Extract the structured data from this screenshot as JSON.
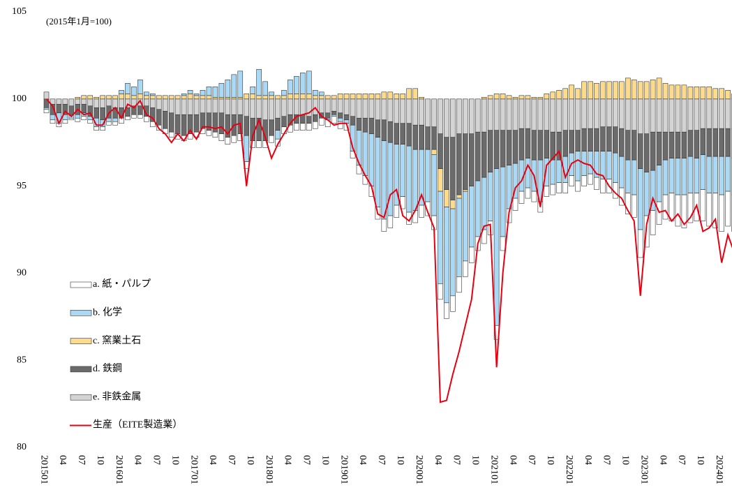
{
  "chart_data": {
    "type": "combo",
    "annotation": "(2015年1月=100)",
    "baseline": 100,
    "categories": [
      "201501",
      null,
      null,
      "04",
      null,
      null,
      "07",
      null,
      null,
      "10",
      null,
      null,
      "201601",
      null,
      null,
      "04",
      null,
      null,
      "07",
      null,
      null,
      "10",
      null,
      null,
      "201701",
      null,
      null,
      "04",
      null,
      null,
      "07",
      null,
      null,
      "10",
      null,
      null,
      "201801",
      null,
      null,
      "04",
      null,
      null,
      "07",
      null,
      null,
      "10",
      null,
      null,
      "201901",
      null,
      null,
      "04",
      null,
      null,
      "07",
      null,
      null,
      "10",
      null,
      null,
      "202001",
      null,
      null,
      "04",
      null,
      null,
      "07",
      null,
      null,
      "10",
      null,
      null,
      "202101",
      null,
      null,
      "04",
      null,
      null,
      "07",
      null,
      null,
      "10",
      null,
      null,
      "202201",
      null,
      null,
      "04",
      null,
      null,
      "07",
      null,
      null,
      "10",
      null,
      null,
      "202301",
      null,
      null,
      "04",
      null,
      null,
      "07",
      null,
      null,
      "10",
      null,
      null,
      "202401",
      null,
      null
    ],
    "ylim": [
      80,
      105
    ],
    "yticks": [
      80,
      85,
      90,
      95,
      100,
      105
    ],
    "series": [
      {
        "name": "a. 紙・パルプ",
        "type": "bar",
        "color": "#ffffff",
        "values": [
          -0.2,
          -0.2,
          -0.2,
          -0.2,
          -0.1,
          -0.2,
          -0.2,
          -0.2,
          -0.2,
          -0.2,
          -0.2,
          -0.2,
          -0.3,
          -0.2,
          -0.2,
          -0.2,
          -0.3,
          -0.3,
          -0.3,
          -0.3,
          -0.3,
          -0.3,
          -0.3,
          -0.3,
          -0.3,
          -0.3,
          -0.3,
          -0.3,
          -0.4,
          -0.4,
          -0.4,
          -0.4,
          -0.4,
          -0.4,
          -0.4,
          -0.4,
          -0.4,
          -0.4,
          -0.4,
          -0.4,
          -0.4,
          -0.4,
          -0.4,
          -0.4,
          -0.4,
          -0.4,
          -0.4,
          -0.4,
          -0.4,
          -0.4,
          -0.5,
          -0.5,
          -0.6,
          -0.7,
          -0.7,
          -0.7,
          -0.7,
          -0.7,
          -0.7,
          -0.7,
          -0.7,
          -0.8,
          -0.8,
          -0.9,
          -0.9,
          -0.9,
          -0.9,
          -0.9,
          -0.9,
          -0.8,
          -0.8,
          -0.8,
          -0.8,
          -0.8,
          -0.8,
          -0.7,
          -0.7,
          -0.6,
          -0.6,
          -0.6,
          -0.6,
          -0.6,
          -0.6,
          -0.6,
          -0.6,
          -0.6,
          -0.6,
          -0.6,
          -0.7,
          -0.8,
          -0.8,
          -0.9,
          -1.0,
          -1.2,
          -1.3,
          -1.6,
          -1.8,
          -1.4,
          -1.3,
          -1.4,
          -1.6,
          -1.8,
          -1.9,
          -1.7,
          -1.6,
          -1.8,
          -1.9,
          -2.0,
          -2.1,
          -2.0,
          -2.1
        ]
      },
      {
        "name": "b. 化学",
        "type": "bar",
        "color": "#a9d9f5",
        "values": [
          -0.1,
          -0.3,
          -0.6,
          -0.3,
          -0.2,
          -0.2,
          -0.2,
          -0.2,
          -0.5,
          -0.4,
          -0.2,
          -0.2,
          0.2,
          0.6,
          0.5,
          0.8,
          0.2,
          0.1,
          0,
          0,
          0,
          0,
          0.1,
          0.2,
          0.1,
          0.3,
          0.5,
          0.6,
          0.8,
          1.0,
          1.3,
          1.5,
          -1.5,
          0.4,
          1.5,
          0.8,
          0.2,
          -0.5,
          0.3,
          0.8,
          1.0,
          1.2,
          1.3,
          0.3,
          0.2,
          -0.1,
          -0.1,
          -0.2,
          -0.2,
          -1.5,
          -2.0,
          -2.5,
          -3.0,
          -4.0,
          -4.5,
          -4.2,
          -3.5,
          -3.0,
          -3.8,
          -3.5,
          -3.2,
          -3.0,
          -3.5,
          -5.3,
          -5.5,
          -5.0,
          -4.5,
          -4.0,
          -3.5,
          -3.2,
          -3.0,
          -2.8,
          -9.0,
          -4.0,
          -2.5,
          -2.0,
          -1.8,
          -1.7,
          -1.8,
          -2.4,
          -1.6,
          -1.4,
          -1.3,
          -1.5,
          -1.3,
          -1.7,
          -1.4,
          -1.3,
          -1.5,
          -1.6,
          -1.6,
          -1.7,
          -1.8,
          -1.9,
          -2.0,
          -3.5,
          -2.5,
          -2.3,
          -2.1,
          -2.0,
          -2.0,
          -2.1,
          -2.1,
          -2.1,
          -2.0,
          -2.0,
          -2.1,
          -2.1,
          -2.2,
          -2.0,
          -2.1
        ]
      },
      {
        "name": "c. 窯業土石",
        "type": "bar",
        "color": "#fcdc8c",
        "values": [
          0,
          0,
          0,
          0,
          0,
          0.1,
          0.2,
          0.2,
          0.1,
          0.2,
          0.2,
          0.2,
          0.3,
          0.3,
          0.2,
          0.3,
          0.2,
          0.2,
          0.2,
          0.2,
          0.2,
          0.2,
          0.2,
          0.3,
          0.2,
          0.2,
          0.2,
          0.1,
          0.1,
          0.1,
          0.1,
          0.1,
          0.3,
          0.3,
          0.2,
          0.2,
          0.2,
          0.2,
          0.2,
          0.3,
          0.3,
          0.3,
          0.3,
          0.2,
          0.2,
          0.2,
          0.2,
          0.3,
          0.3,
          0.3,
          0.3,
          0.3,
          0.3,
          0.3,
          0.4,
          0.4,
          0.3,
          0.3,
          0.6,
          0.6,
          0.1,
          0,
          -0.3,
          -1.3,
          -1.0,
          -0.5,
          -0.2,
          -0.1,
          0,
          0,
          0.1,
          0.2,
          0.3,
          0.3,
          0.2,
          0.1,
          0.2,
          0.2,
          0.1,
          0.1,
          0.3,
          0.4,
          0.5,
          0.6,
          0.8,
          0.6,
          1.0,
          1.0,
          0.9,
          1.0,
          1.0,
          1.0,
          1.0,
          1.2,
          1.1,
          1.0,
          1.0,
          1.1,
          1.2,
          0.9,
          0.8,
          0.8,
          0.8,
          0.7,
          0.7,
          0.7,
          0.7,
          0.6,
          0.6,
          0.5,
          0.3
        ]
      },
      {
        "name": "d. 鉄鋼",
        "type": "bar",
        "color": "#6b6b6b",
        "values": [
          -0.5,
          -0.6,
          -0.5,
          -0.6,
          -0.5,
          -0.6,
          -0.5,
          -0.6,
          -0.6,
          -0.7,
          -0.7,
          -0.6,
          -0.6,
          -0.5,
          -0.5,
          -0.5,
          -0.6,
          -0.8,
          -0.9,
          -1.0,
          -1.1,
          -1.1,
          -1.2,
          -1.1,
          -1.0,
          -0.9,
          -1.0,
          -1.1,
          -1.2,
          -1.3,
          -1.2,
          -1.1,
          -1.1,
          -1.3,
          -1.3,
          -1.2,
          -0.9,
          -0.7,
          -0.6,
          -0.6,
          -0.5,
          -0.5,
          -0.4,
          -0.4,
          -0.3,
          -0.3,
          -0.2,
          -0.3,
          -0.3,
          -0.5,
          -0.7,
          -0.8,
          -0.9,
          -1.0,
          -1.2,
          -1.2,
          -1.2,
          -1.2,
          -1.3,
          -1.4,
          -1.4,
          -1.3,
          -1.3,
          -2.0,
          -3.0,
          -3.6,
          -3.5,
          -3.2,
          -3.0,
          -2.8,
          -2.6,
          -2.4,
          -2.2,
          -2.1,
          -2.0,
          -1.9,
          -1.8,
          -1.7,
          -1.7,
          -1.7,
          -1.6,
          -1.6,
          -1.6,
          -1.5,
          -1.3,
          -1.2,
          -1.3,
          -1.3,
          -1.3,
          -1.4,
          -1.4,
          -1.5,
          -1.6,
          -1.7,
          -1.7,
          -2.0,
          -2.2,
          -2.2,
          -1.9,
          -1.6,
          -1.5,
          -1.5,
          -1.5,
          -1.5,
          -1.6,
          -1.5,
          -1.6,
          -1.6,
          -1.6,
          -1.6,
          -1.7
        ]
      },
      {
        "name": "e. 非鉄金属",
        "type": "bar",
        "color": "#d4d4d4",
        "values": [
          0.4,
          -0.3,
          -0.3,
          -0.3,
          -0.4,
          -0.3,
          -0.3,
          -0.4,
          -0.5,
          -0.5,
          -0.4,
          -0.5,
          -0.5,
          -0.5,
          -0.4,
          -0.4,
          -0.4,
          -0.5,
          -0.6,
          -0.7,
          -0.8,
          -0.9,
          -0.9,
          -0.9,
          -0.9,
          -0.8,
          -0.8,
          -0.8,
          -0.8,
          -0.9,
          -0.9,
          -0.9,
          -1.0,
          -1.1,
          -1.1,
          -1.2,
          -1.2,
          -1.1,
          -1.0,
          -0.9,
          -0.9,
          -0.9,
          -1.0,
          -0.9,
          -0.8,
          -0.8,
          -0.7,
          -0.8,
          -0.9,
          -1.0,
          -1.1,
          -1.1,
          -1.1,
          -1.2,
          -1.2,
          -1.3,
          -1.4,
          -1.4,
          -1.4,
          -1.5,
          -1.5,
          -1.6,
          -1.6,
          -2.0,
          -2.2,
          -2.2,
          -2.0,
          -2.0,
          -2.0,
          -1.9,
          -1.9,
          -1.8,
          -1.8,
          -1.8,
          -1.8,
          -1.8,
          -1.7,
          -1.7,
          -1.8,
          -1.8,
          -1.8,
          -1.9,
          -1.9,
          -1.8,
          -1.8,
          -1.8,
          -1.7,
          -1.7,
          -1.7,
          -1.6,
          -1.6,
          -1.6,
          -1.7,
          -1.8,
          -1.8,
          -2.0,
          -2.0,
          -1.9,
          -1.9,
          -1.9,
          -1.9,
          -1.9,
          -1.9,
          -1.8,
          -1.8,
          -1.7,
          -1.7,
          -1.7,
          -1.7,
          -1.7,
          -1.7
        ]
      },
      {
        "name": "生産（EITE製造業）",
        "type": "line",
        "color": "#e60012",
        "values": [
          100,
          99.6,
          98.6,
          99.3,
          99.0,
          99.4,
          99.1,
          99.2,
          98.5,
          98.5,
          99.2,
          99.5,
          98.9,
          99.7,
          99.5,
          99.9,
          99.1,
          98.9,
          98.3,
          98.0,
          97.5,
          98.0,
          97.6,
          98.2,
          97.7,
          98.4,
          98.4,
          98.3,
          98.4,
          98.0,
          98.5,
          98.6,
          95.0,
          97.9,
          98.8,
          97.8,
          96.6,
          97.4,
          98.0,
          98.6,
          99.0,
          99.1,
          99.2,
          99.5,
          99.0,
          98.8,
          98.5,
          98.6,
          98.6,
          97.2,
          96.3,
          95.6,
          95.0,
          93.4,
          93.2,
          94.5,
          94.8,
          93.3,
          93.0,
          93.6,
          94.5,
          93.5,
          92.6,
          82.6,
          82.7,
          84.2,
          85.5,
          87.0,
          88.5,
          91.7,
          92.7,
          92.8,
          84.6,
          90.0,
          93.5,
          94.9,
          95.3,
          96.2,
          95.6,
          93.8,
          96.2,
          96.6,
          97.0,
          95.5,
          96.3,
          96.5,
          96.3,
          96.2,
          95.7,
          95.6,
          95.0,
          94.6,
          94.3,
          93.6,
          93.0,
          88.7,
          92.8,
          94.3,
          93.5,
          93.6,
          93.0,
          93.4,
          92.8,
          93.2,
          93.9,
          92.4,
          92.6,
          93.1,
          90.6,
          92.2,
          91.2
        ]
      }
    ]
  }
}
